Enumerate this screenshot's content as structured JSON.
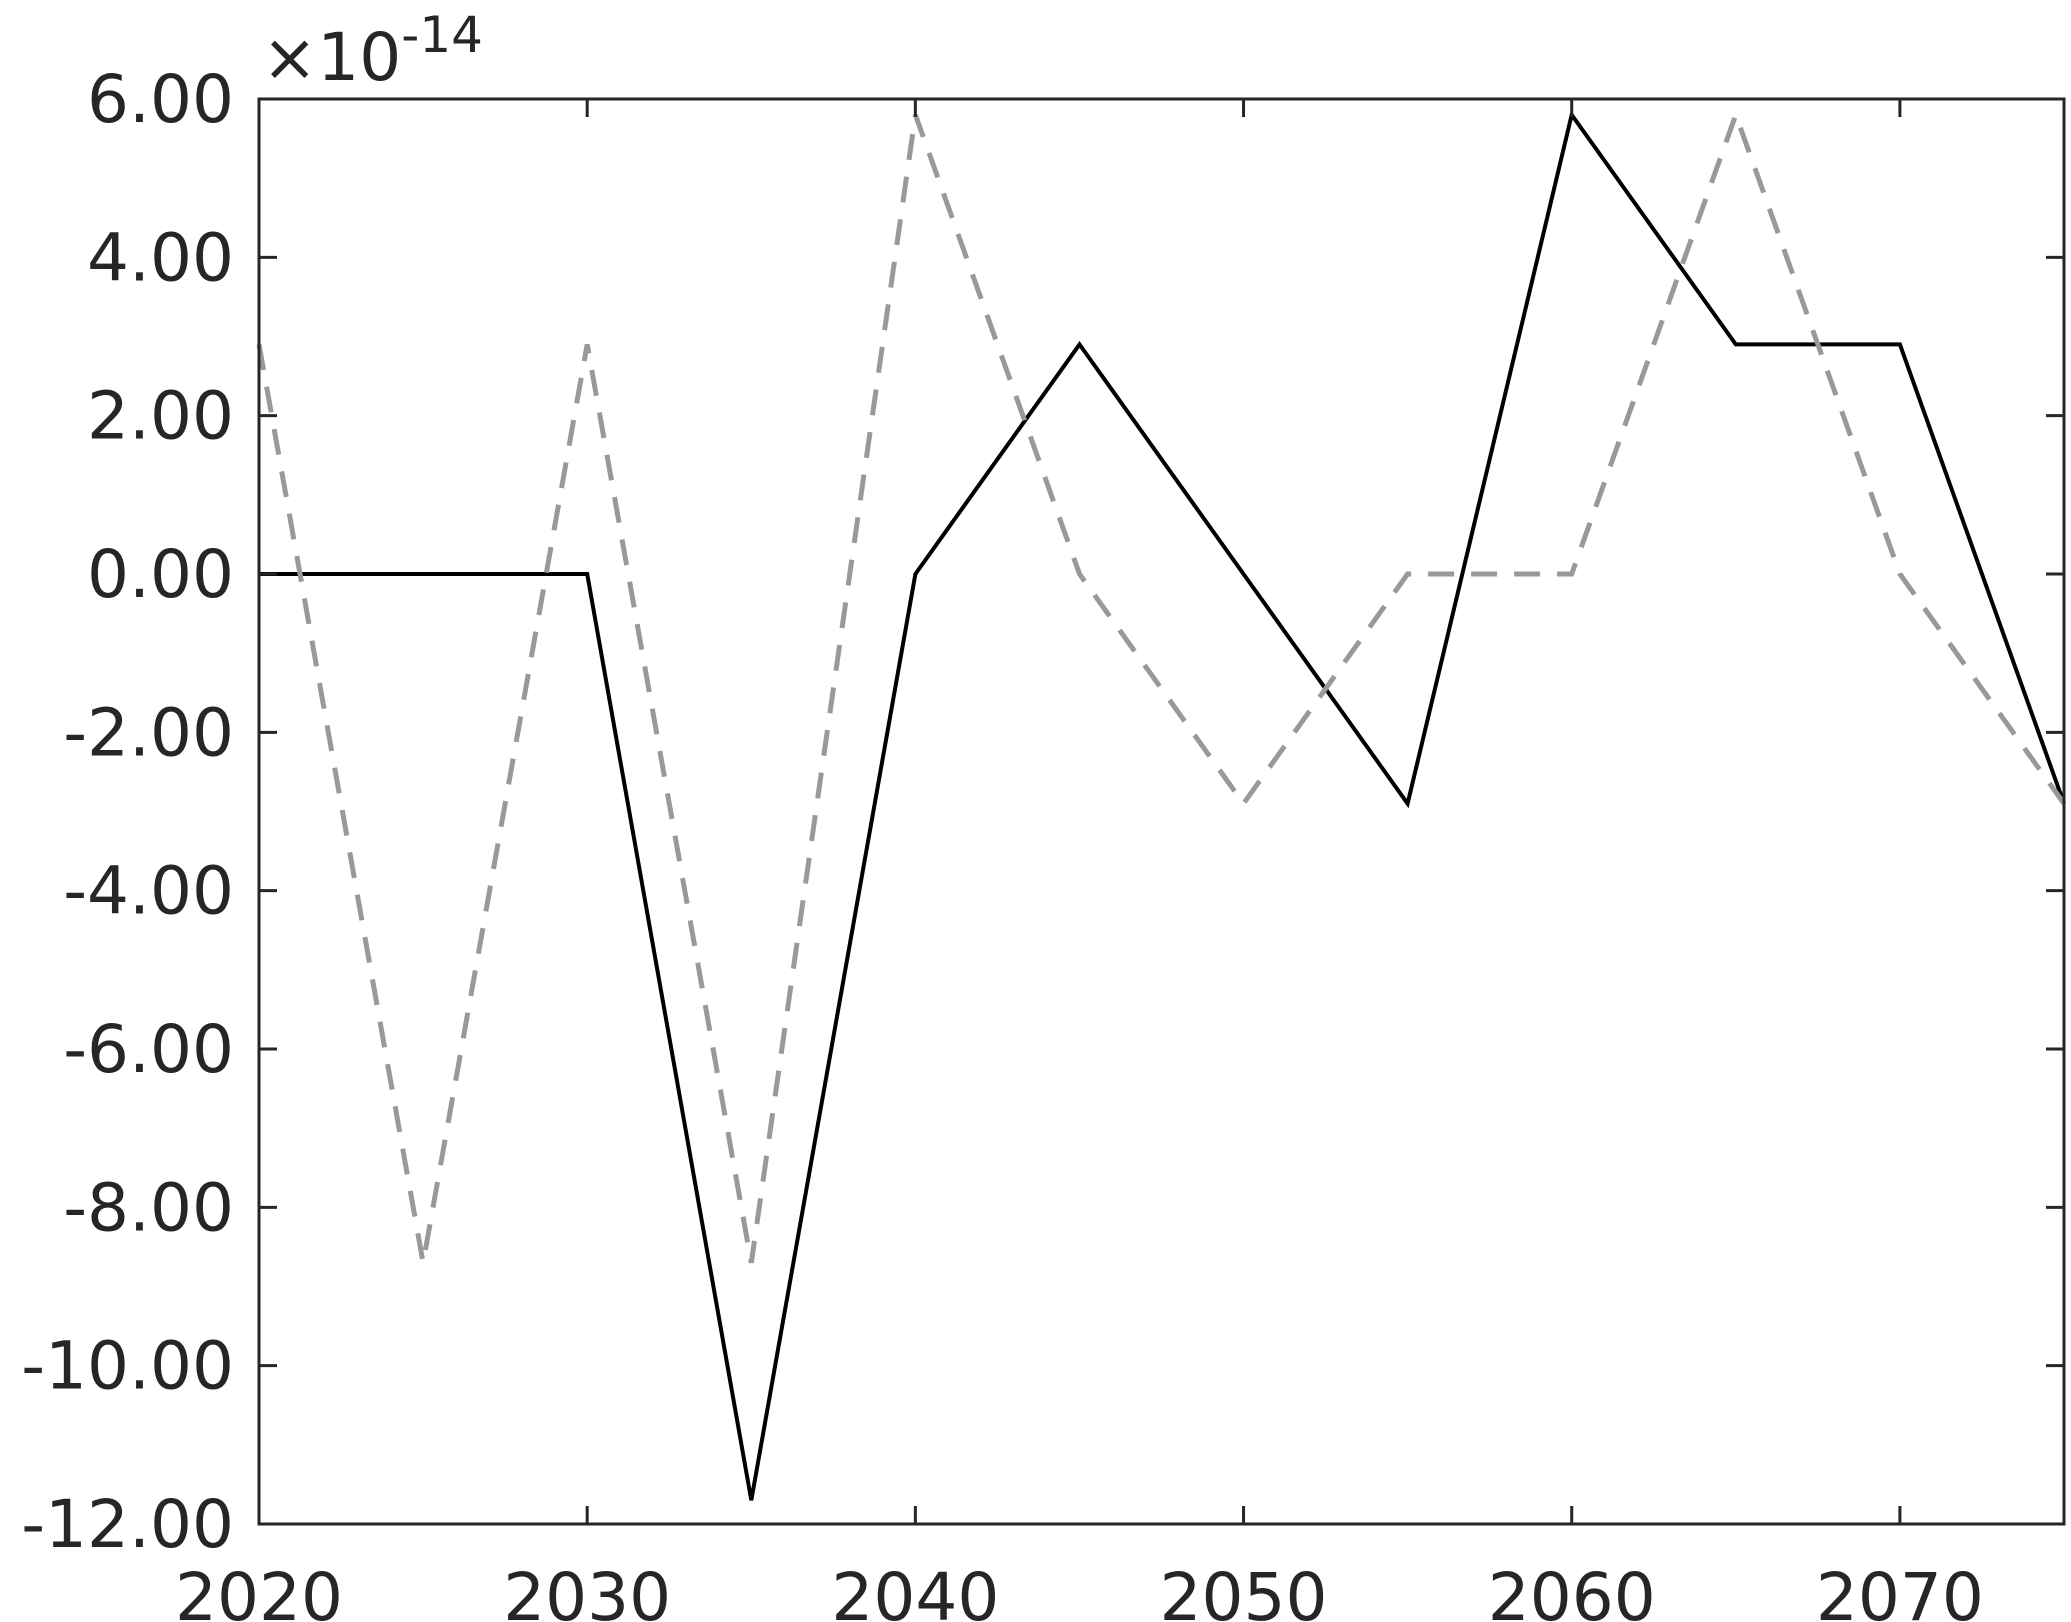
{
  "chart_data": {
    "type": "line",
    "title": "",
    "xlabel": "",
    "ylabel": "",
    "xlim": [
      2020,
      2075
    ],
    "ylim": [
      -12,
      6
    ],
    "y_multiplier": {
      "times": "×10",
      "exponent": "-14"
    },
    "x_ticks": [
      {
        "value": 2020,
        "label": "2020"
      },
      {
        "value": 2030,
        "label": "2030"
      },
      {
        "value": 2040,
        "label": "2040"
      },
      {
        "value": 2050,
        "label": "2050"
      },
      {
        "value": 2060,
        "label": "2060"
      },
      {
        "value": 2070,
        "label": "2070"
      }
    ],
    "y_ticks": [
      {
        "value": 6,
        "label": "6.00"
      },
      {
        "value": 4,
        "label": "4.00"
      },
      {
        "value": 2,
        "label": "2.00"
      },
      {
        "value": 0,
        "label": "0.00"
      },
      {
        "value": -2,
        "label": "-2.00"
      },
      {
        "value": -4,
        "label": "-4.00"
      },
      {
        "value": -6,
        "label": "-6.00"
      },
      {
        "value": -8,
        "label": "-8.00"
      },
      {
        "value": -10,
        "label": "-10.00"
      },
      {
        "value": -12,
        "label": "-12.00"
      }
    ],
    "grid": false,
    "x": [
      2020,
      2025,
      2030,
      2035,
      2040,
      2045,
      2050,
      2055,
      2060,
      2065,
      2070,
      2075
    ],
    "series": [
      {
        "color": "#000000",
        "style": "solid",
        "values": [
          0,
          0,
          0,
          -11.7,
          0,
          2.9,
          0,
          -2.9,
          5.8,
          2.9,
          2.9,
          -2.9
        ]
      },
      {
        "color": "#999999",
        "style": "dashed",
        "values": [
          2.9,
          -8.7,
          2.9,
          -8.7,
          5.8,
          0,
          -2.9,
          0,
          0,
          5.8,
          0,
          -2.9
        ]
      }
    ]
  }
}
